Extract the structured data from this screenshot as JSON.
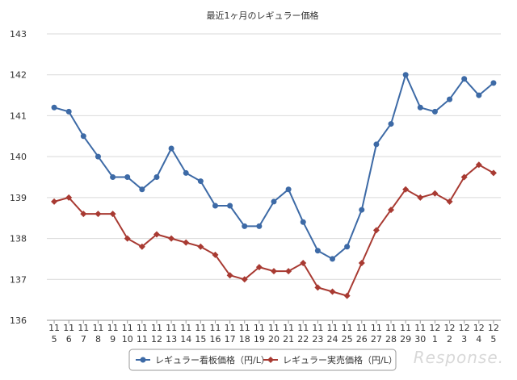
{
  "chart_data": {
    "type": "line",
    "title": "最近1ヶ月のレギュラー価格",
    "xlabel": "",
    "ylabel": "",
    "ylim": [
      136,
      143
    ],
    "yticks": [
      136,
      137,
      138,
      139,
      140,
      141,
      142,
      143
    ],
    "grid": true,
    "legend_position": "bottom-center",
    "x": [
      {
        "month": "11",
        "day": "5"
      },
      {
        "month": "11",
        "day": "6"
      },
      {
        "month": "11",
        "day": "7"
      },
      {
        "month": "11",
        "day": "8"
      },
      {
        "month": "11",
        "day": "9"
      },
      {
        "month": "11",
        "day": "10"
      },
      {
        "month": "11",
        "day": "11"
      },
      {
        "month": "11",
        "day": "12"
      },
      {
        "month": "11",
        "day": "13"
      },
      {
        "month": "11",
        "day": "14"
      },
      {
        "month": "11",
        "day": "15"
      },
      {
        "month": "11",
        "day": "16"
      },
      {
        "month": "11",
        "day": "17"
      },
      {
        "month": "11",
        "day": "18"
      },
      {
        "month": "11",
        "day": "19"
      },
      {
        "month": "11",
        "day": "20"
      },
      {
        "month": "11",
        "day": "21"
      },
      {
        "month": "11",
        "day": "22"
      },
      {
        "month": "11",
        "day": "23"
      },
      {
        "month": "11",
        "day": "24"
      },
      {
        "month": "11",
        "day": "25"
      },
      {
        "month": "11",
        "day": "26"
      },
      {
        "month": "11",
        "day": "27"
      },
      {
        "month": "11",
        "day": "28"
      },
      {
        "month": "11",
        "day": "29"
      },
      {
        "month": "11",
        "day": "30"
      },
      {
        "month": "12",
        "day": "1"
      },
      {
        "month": "12",
        "day": "2"
      },
      {
        "month": "12",
        "day": "3"
      },
      {
        "month": "12",
        "day": "4"
      },
      {
        "month": "12",
        "day": "5"
      }
    ],
    "series": [
      {
        "name": "レギュラー看板価格（円/L）",
        "color": "#3d6aa6",
        "marker": "circle",
        "values": [
          141.2,
          141.1,
          140.5,
          140.0,
          139.5,
          139.5,
          139.2,
          139.5,
          140.2,
          139.6,
          139.4,
          138.8,
          138.8,
          138.3,
          138.3,
          138.9,
          139.2,
          138.4,
          137.7,
          137.5,
          137.8,
          138.7,
          140.3,
          140.8,
          142.0,
          141.2,
          141.1,
          141.4,
          141.9,
          141.5,
          141.8
        ]
      },
      {
        "name": "レギュラー実売価格（円/L）",
        "color": "#a83a32",
        "marker": "diamond",
        "values": [
          138.9,
          139.0,
          138.6,
          138.6,
          138.6,
          138.0,
          137.8,
          138.1,
          138.0,
          137.9,
          137.8,
          137.6,
          137.1,
          137.0,
          137.3,
          137.2,
          137.2,
          137.4,
          136.8,
          136.7,
          136.6,
          137.4,
          138.2,
          138.7,
          139.2,
          139.0,
          139.1,
          138.9,
          139.5,
          139.8,
          139.6
        ]
      }
    ]
  },
  "watermark": "Response."
}
